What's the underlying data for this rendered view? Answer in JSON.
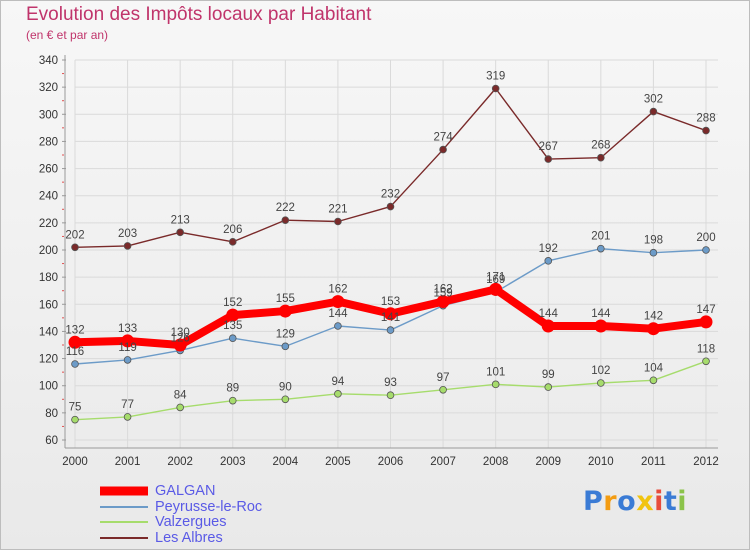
{
  "header": {
    "title": "Evolution des Impôts locaux par Habitant",
    "subtitle": "(en € et par an)"
  },
  "brand": {
    "letters": [
      "P",
      "r",
      "o",
      "x",
      "i",
      "t",
      "i"
    ],
    "colors": [
      "#3a7bd5",
      "#f39c12",
      "#3a7bd5",
      "#f1c40f",
      "#e74c3c",
      "#3a7bd5",
      "#8bc34a"
    ]
  },
  "chart_data": {
    "type": "line",
    "title": "Evolution des Impôts locaux par Habitant",
    "subtitle": "(en € et par an)",
    "x": [
      "2000",
      "2001",
      "2002",
      "2003",
      "2004",
      "2005",
      "2006",
      "2007",
      "2008",
      "2009",
      "2010",
      "2011",
      "2012"
    ],
    "ylim": [
      60,
      340
    ],
    "yticks": [
      60,
      80,
      100,
      120,
      140,
      160,
      180,
      200,
      220,
      240,
      260,
      280,
      300,
      320,
      340
    ],
    "grid": true,
    "legend_position": "bottom-left",
    "series": [
      {
        "name": "GALGAN",
        "color": "#ff0000",
        "values": [
          132,
          133,
          130,
          152,
          155,
          162,
          153,
          162,
          171,
          144,
          144,
          142,
          147
        ]
      },
      {
        "name": "Peyrusse-le-Roc",
        "color": "#6c9bc8",
        "values": [
          116,
          119,
          126,
          135,
          129,
          144,
          141,
          159,
          169,
          192,
          201,
          198,
          200
        ]
      },
      {
        "name": "Valzergues",
        "color": "#a6dc6c",
        "values": [
          75,
          77,
          84,
          89,
          90,
          94,
          93,
          97,
          101,
          99,
          102,
          104,
          118
        ]
      },
      {
        "name": "Les Albres",
        "color": "#7a2a2a",
        "values": [
          202,
          203,
          213,
          206,
          222,
          221,
          232,
          274,
          319,
          267,
          268,
          302,
          288
        ]
      }
    ]
  }
}
